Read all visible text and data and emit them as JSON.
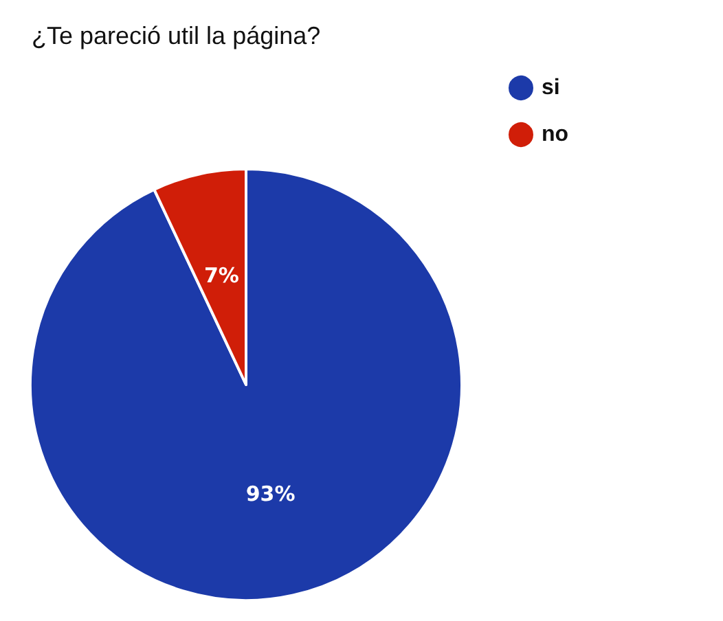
{
  "chart_data": {
    "type": "pie",
    "title": "¿Te pareció util la página?",
    "categories": [
      "si",
      "no"
    ],
    "values": [
      93,
      7
    ],
    "colors": [
      "#1c3aa9",
      "#d01e08"
    ],
    "value_labels": [
      "93%",
      "7%"
    ],
    "legend": "top right"
  }
}
